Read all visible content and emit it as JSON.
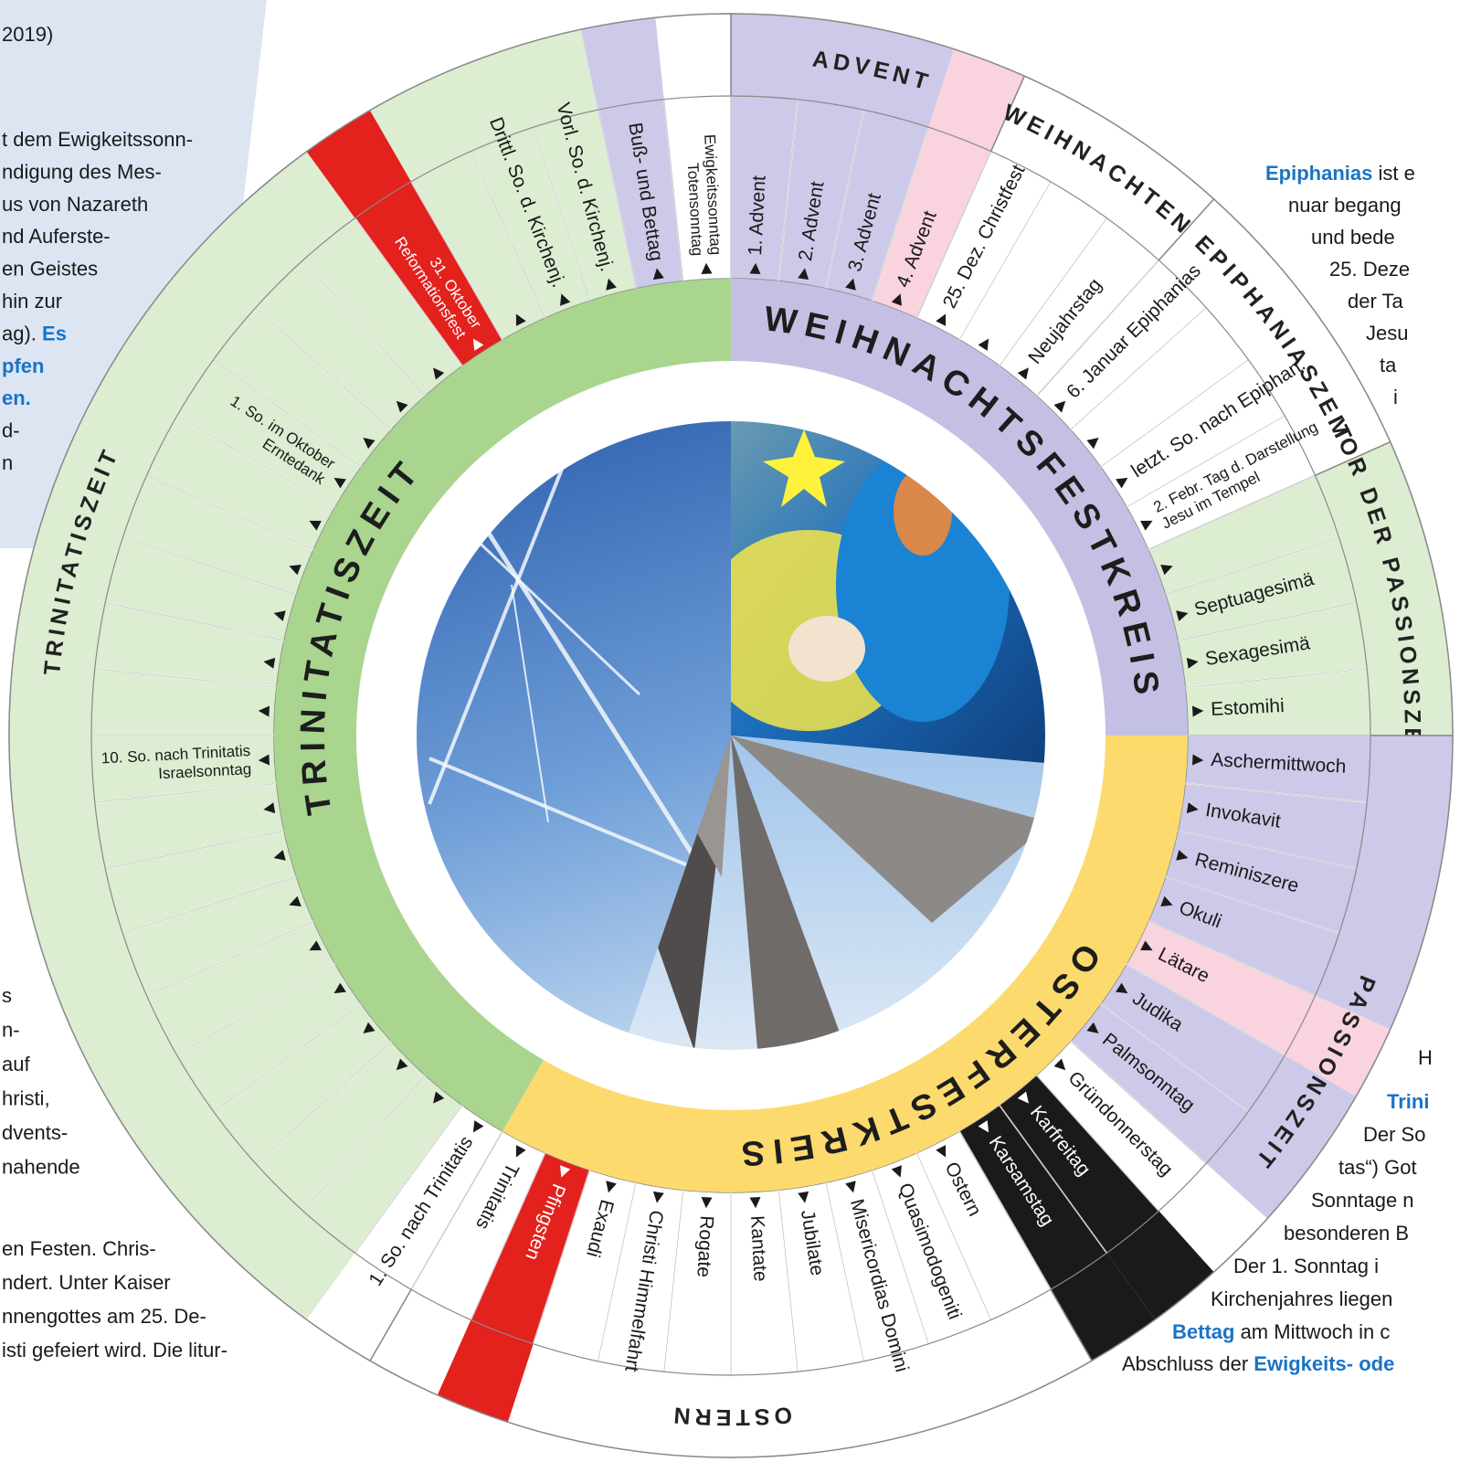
{
  "circles": [
    {
      "name": "WEIHNACHTSFESTKREIS",
      "color": "#c3c0e3",
      "seasons": [
        {
          "name": "ADVENT",
          "color": "#cccae8",
          "sundays": [
            {
              "label": "1. Advent"
            },
            {
              "label": "2. Advent"
            },
            {
              "label": "3. Advent"
            },
            {
              "label": "4. Advent",
              "color": "#f9d3dd"
            }
          ]
        },
        {
          "name": "WEIHNACHTEN",
          "color": "#ffffff",
          "sundays": [
            {
              "label": "25. Dez. Christfest"
            },
            null,
            {
              "label": "Neujahrstag"
            }
          ]
        },
        {
          "name": "EPIPHANIASZEIT",
          "color": "#ffffff",
          "sundays": [
            {
              "label": "6. Januar Epiphanias"
            },
            null,
            {
              "label": "letzt. So. nach Epiphan."
            },
            {
              "label": "2. Febr. Tag d. Darstellung",
              "sublabel": "Jesu im Tempel"
            }
          ]
        },
        {
          "name": "VOR DER PASSIONSZEIT",
          "color": "#dcedd2",
          "sundays": [
            null,
            {
              "label": "Septuagesimä"
            },
            {
              "label": "Sexagesimä"
            },
            {
              "label": "Estomihi"
            }
          ]
        }
      ]
    },
    {
      "name": "OSTERFESTKREIS",
      "color": "#fdda6e",
      "seasons": [
        {
          "name": "PASSIONSZEIT",
          "color": "#cccae8",
          "sundays": [
            {
              "label": "Aschermittwoch"
            },
            {
              "label": "Invokavit"
            },
            {
              "label": "Reminiszere"
            },
            {
              "label": "Okuli"
            },
            {
              "label": "Lätare",
              "color": "#f9d3dd"
            },
            {
              "label": "Judika"
            },
            {
              "label": "Palmsonntag"
            },
            {
              "label": "Gründonnerstag",
              "color": "#ffffff"
            },
            {
              "label": "Karfreitag",
              "color": "#1a1a1a"
            },
            {
              "label": "Karsamstag",
              "color": "#1a1a1a"
            }
          ]
        },
        {
          "name": "OSTERN",
          "color": "#ffffff",
          "sundays": [
            {
              "label": "Ostern"
            },
            {
              "label": "Quasimodogeniti"
            },
            {
              "label": "Misericordias Domini"
            },
            {
              "label": "Jubilate"
            },
            {
              "label": "Kantate"
            },
            {
              "label": "Rogate"
            },
            {
              "label": "Christi Himmelfahrt"
            },
            {
              "label": "Exaudi"
            },
            {
              "label": "Pfingsten",
              "color": "#e3211d"
            },
            {
              "label": "Trinitatis"
            }
          ]
        }
      ]
    },
    {
      "name": "TRINITATISZEIT",
      "color": "#a9d58f",
      "seasons": [
        {
          "name": "TRINITATISZEIT",
          "color": "#dcedd2",
          "sundays": [
            {
              "label": "1. So. nach Trinitatis",
              "color": "#ffffff"
            },
            null,
            null,
            null,
            null,
            null,
            null,
            null,
            null,
            {
              "label": "10. So. nach Trinitatis",
              "sublabel": "Israelsonntag"
            },
            null,
            null,
            null,
            null,
            null,
            {
              "label": "1. So. im Oktober",
              "sublabel": "Erntedank"
            },
            null,
            null,
            null,
            {
              "label": "31. Oktober",
              "sublabel": "Reformationsfest",
              "color": "#e3211d"
            },
            null,
            {
              "label": "Drittl. So. d. Kirchenj."
            },
            {
              "label": "Vorl. So. d. Kirchenj."
            },
            {
              "label": "Buß- und Bettag",
              "color": "#cccae8"
            },
            {
              "label": "Ewigkeitssonntag",
              "sublabel": "Totensonntag",
              "color": "#ffffff"
            }
          ]
        }
      ]
    }
  ],
  "notes": [
    {
      "lines": [
        [
          "2019)"
        ]
      ]
    },
    {
      "lines": [
        [
          "t dem Ewigkeitssonn-"
        ],
        [
          "ndigung des Mes-"
        ],
        [
          "us von Nazareth"
        ],
        [
          "nd Auferste-"
        ],
        [
          "en Geistes"
        ],
        [
          "hin zur"
        ],
        [
          "ag). ",
          {
            "em": "Es"
          }
        ],
        [
          {
            "em": "pfen"
          }
        ],
        [
          {
            "em": "en."
          }
        ],
        [
          "d-"
        ],
        [
          "n"
        ]
      ]
    },
    {
      "lines": [
        [
          "s"
        ],
        [
          "n-"
        ],
        [
          "auf"
        ],
        [
          "hristi,"
        ],
        [
          "dvents-"
        ],
        [
          "nahende"
        ]
      ]
    },
    {
      "lines": [
        [
          "en Festen. Chris-"
        ],
        [
          "ndert. Unter Kaiser"
        ],
        [
          "nnengottes am 25. De-"
        ],
        [
          "isti gefeiert wird. Die litur-"
        ]
      ]
    },
    {
      "lines": [
        [
          {
            "em": "Epiphanias"
          },
          " ist e"
        ],
        [
          "nuar begang"
        ],
        [
          "und bede"
        ],
        [
          "25. Deze"
        ],
        [
          "der Ta"
        ],
        [
          "Jesu"
        ],
        [
          "ta"
        ],
        [
          "i"
        ]
      ]
    },
    {
      "lines": [
        [
          "H"
        ],
        [
          {
            "em": "Trini"
          }
        ],
        [
          "Der So"
        ],
        [
          "tas“) Got"
        ],
        [
          "Sonntage n"
        ],
        [
          "besonderen B"
        ],
        [
          "Der 1. Sonntag i"
        ],
        [
          "Kirchenjahres liegen"
        ],
        [
          {
            "em": "Bettag"
          },
          " am Mittwoch in c"
        ],
        [
          "Abschluss der ",
          {
            "em": "Ewigkeits- ode"
          }
        ]
      ]
    }
  ]
}
